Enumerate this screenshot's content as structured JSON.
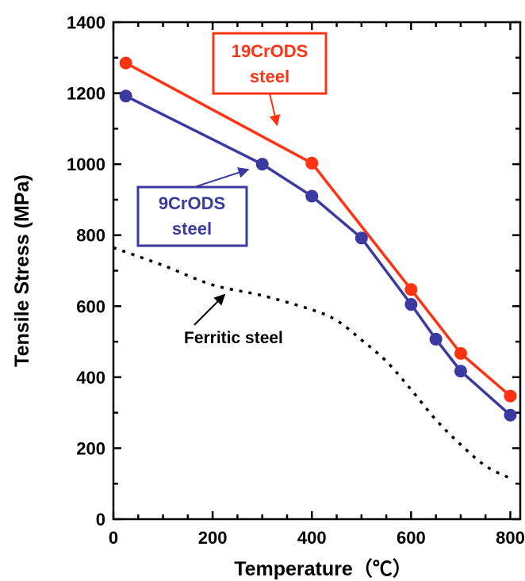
{
  "chart_data": {
    "type": "line",
    "xlabel": "Temperature（℃）",
    "ylabel": "Tensile Stress (MPa)",
    "xlim": [
      0,
      820
    ],
    "ylim": [
      0,
      1400
    ],
    "x_ticks": [
      "0",
      "200",
      "400",
      "600",
      "800"
    ],
    "y_ticks": [
      "0",
      "200",
      "400",
      "600",
      "800",
      "1000",
      "1200",
      "1400"
    ],
    "grid": false,
    "series": [
      {
        "name": "19CrODS steel",
        "color": "#ff3311",
        "style": "solid-with-markers",
        "x": [
          25,
          400,
          600,
          700,
          800
        ],
        "y": [
          1285,
          1003,
          647,
          467,
          347
        ]
      },
      {
        "name": "9CrODS steel",
        "color": "#3a3aa0",
        "style": "solid-with-markers",
        "x": [
          25,
          300,
          400,
          500,
          600,
          650,
          700,
          800
        ],
        "y": [
          1192,
          1000,
          910,
          792,
          605,
          507,
          417,
          293
        ]
      },
      {
        "name": "Ferritic steel",
        "color": "#000000",
        "style": "dotted",
        "x": [
          0,
          100,
          200,
          300,
          400,
          450,
          500,
          550,
          600,
          650,
          700,
          750,
          800
        ],
        "y": [
          765,
          715,
          660,
          630,
          590,
          560,
          505,
          445,
          365,
          280,
          210,
          150,
          115
        ]
      }
    ],
    "annotations": [
      {
        "label_lines": [
          "19CrODS",
          "steel"
        ],
        "color": "#ff3311",
        "boxed": true,
        "target": [
          250,
          1110
        ]
      },
      {
        "label_lines": [
          "9CrODS",
          "steel"
        ],
        "color": "#3a3aa0",
        "boxed": true,
        "target": [
          240,
          985
        ]
      },
      {
        "label_lines": [
          "Ferritic steel"
        ],
        "color": "#000000",
        "boxed": false,
        "target": [
          205,
          655
        ]
      }
    ]
  }
}
